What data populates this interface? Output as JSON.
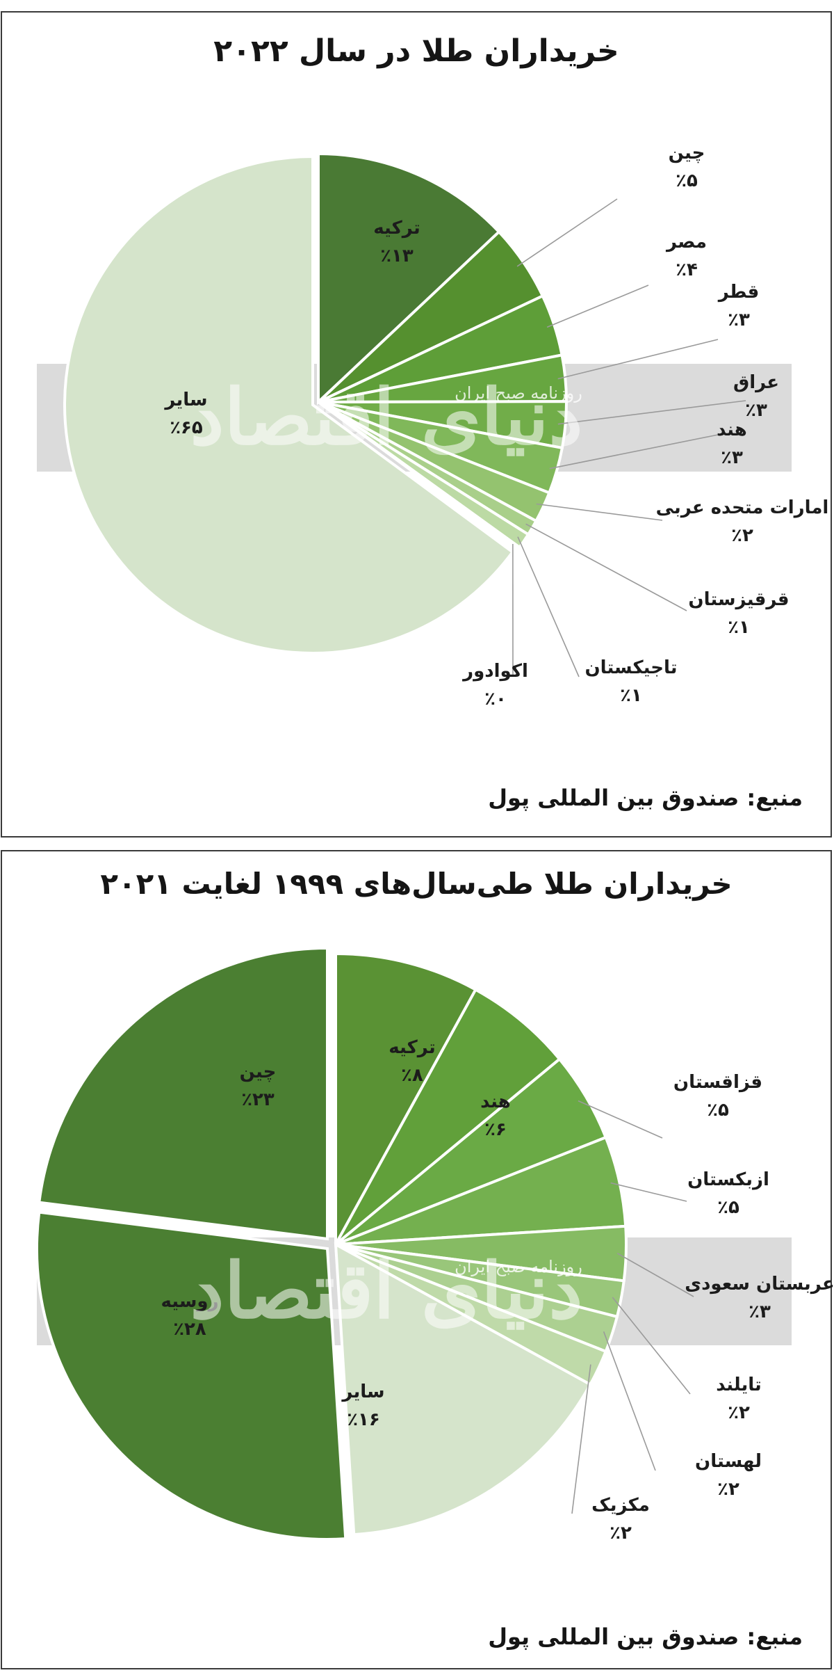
{
  "chart_data": [
    {
      "type": "pie",
      "title": "خریداران طلا در سال ۲۰۲۲",
      "source": "منبع: صندوق بین المللی پول",
      "watermark": {
        "main": "دنیای اقتصاد",
        "sub": "روزنامه صبح ایران"
      },
      "slices": [
        {
          "label": "ترکیه",
          "value": 13,
          "value_label": "٪۱۳",
          "color": "#4a7a34"
        },
        {
          "label": "چین",
          "value": 5,
          "value_label": "٪۵",
          "color": "#55902f"
        },
        {
          "label": "مصر",
          "value": 4,
          "value_label": "٪۴",
          "color": "#5e9e38"
        },
        {
          "label": "قطر",
          "value": 3,
          "value_label": "٪۳",
          "color": "#67a640"
        },
        {
          "label": "عراق",
          "value": 3,
          "value_label": "٪۳",
          "color": "#71ad49"
        },
        {
          "label": "هند",
          "value": 3,
          "value_label": "٪۳",
          "color": "#80b85a"
        },
        {
          "label": "امارات متحده عربی",
          "value": 2,
          "value_label": "٪۲",
          "color": "#94c36f"
        },
        {
          "label": "قرقیزستان",
          "value": 1,
          "value_label": "٪۱",
          "color": "#a9cf8a"
        },
        {
          "label": "تاجیکستان",
          "value": 1,
          "value_label": "٪۱",
          "color": "#bcdaa4"
        },
        {
          "label": "اکوادور",
          "value": 0,
          "value_label": "٪۰",
          "color": "#c9e0b8"
        },
        {
          "label": "سایر",
          "value": 65,
          "value_label": "٪۶۵",
          "color": "#d5e4cb"
        }
      ]
    },
    {
      "type": "pie",
      "title": "خریداران طلا طی‌سال‌های ۱۹۹۹ لغایت ۲۰۲۱",
      "source": "منبع: صندوق بین المللی پول",
      "watermark": {
        "main": "دنیای اقتصاد",
        "sub": "روزنامه صبح ایران"
      },
      "slices": [
        {
          "label": "ترکیه",
          "value": 8,
          "value_label": "٪۸",
          "color": "#5a9234"
        },
        {
          "label": "هند",
          "value": 6,
          "value_label": "٪۶",
          "color": "#61a03a"
        },
        {
          "label": "قزاقستان",
          "value": 5,
          "value_label": "٪۵",
          "color": "#6aaa45"
        },
        {
          "label": "ازبکستان",
          "value": 5,
          "value_label": "٪۵",
          "color": "#74b04f"
        },
        {
          "label": "عربستان سعودی",
          "value": 3,
          "value_label": "٪۳",
          "color": "#86bb63"
        },
        {
          "label": "تایلند",
          "value": 2,
          "value_label": "٪۲",
          "color": "#99c67a"
        },
        {
          "label": "لهستان",
          "value": 2,
          "value_label": "٪۲",
          "color": "#acd091"
        },
        {
          "label": "مکزیک",
          "value": 2,
          "value_label": "٪۲",
          "color": "#bfdaa9"
        },
        {
          "label": "سایر",
          "value": 16,
          "value_label": "٪۱۶",
          "color": "#d5e4cb"
        },
        {
          "label": "روسیه",
          "value": 28,
          "value_label": "٪۲۸",
          "color": "#4b7f32"
        },
        {
          "label": "چین",
          "value": 23,
          "value_label": "٪۲۳",
          "color": "#4b7f32"
        }
      ]
    }
  ]
}
